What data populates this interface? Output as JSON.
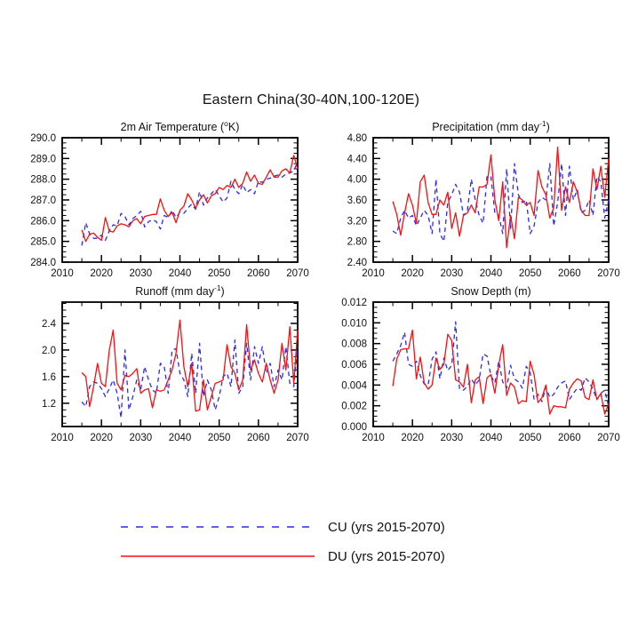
{
  "page_title": "Eastern China(30-40N,100-120E)",
  "colors": {
    "cu": "#2a2af0",
    "du": "#f80f0f",
    "axis": "#000000",
    "background": "#ffffff"
  },
  "legend": {
    "position": "bottom-center",
    "items": [
      {
        "name": "CU",
        "label": "CU (yrs 2015-2070)",
        "color": "#2a2af0",
        "style": "dashed"
      },
      {
        "name": "DU",
        "label": "DU (yrs 2015-2070)",
        "color": "#f80f0f",
        "style": "solid"
      }
    ]
  },
  "years": [
    2015,
    2016,
    2017,
    2018,
    2019,
    2020,
    2021,
    2022,
    2023,
    2024,
    2025,
    2026,
    2027,
    2028,
    2029,
    2030,
    2031,
    2032,
    2033,
    2034,
    2035,
    2036,
    2037,
    2038,
    2039,
    2040,
    2041,
    2042,
    2043,
    2044,
    2045,
    2046,
    2047,
    2048,
    2049,
    2050,
    2051,
    2052,
    2053,
    2054,
    2055,
    2056,
    2057,
    2058,
    2059,
    2060,
    2061,
    2062,
    2063,
    2064,
    2065,
    2066,
    2067,
    2068,
    2069,
    2070
  ],
  "chart_data": [
    {
      "type": "line",
      "title": "2m Air Temperature (°K)",
      "title_parts": {
        "pre": "2m Air Temperature (",
        "sup": "o",
        "post": "K)"
      },
      "xlabel": "",
      "ylabel": "",
      "xlim": [
        2010,
        2070
      ],
      "xticks": [
        2010,
        2020,
        2030,
        2040,
        2050,
        2060,
        2070
      ],
      "x_minor_step": 5,
      "ylim": [
        284.0,
        290.0
      ],
      "yticks": [
        284.0,
        285.0,
        286.0,
        287.0,
        288.0,
        289.0,
        290.0
      ],
      "ytick_labels": [
        "284.0",
        "285.0",
        "286.0",
        "287.0",
        "288.0",
        "289.0",
        "290.0"
      ],
      "y_minor_step": 0.25,
      "grid": false,
      "series": [
        {
          "name": "CU",
          "color": "#2a2af0",
          "dash": "5 4",
          "values": [
            284.8,
            285.9,
            285.35,
            285.15,
            285.15,
            285.3,
            285.05,
            285.5,
            285.8,
            285.75,
            286.35,
            286.2,
            285.8,
            286.1,
            286.25,
            286.45,
            285.7,
            285.95,
            286.05,
            285.95,
            285.6,
            286.25,
            286.15,
            286.5,
            286.15,
            286.4,
            286.35,
            286.6,
            286.8,
            286.55,
            287.4,
            286.75,
            287.1,
            287.3,
            287.5,
            287.2,
            286.9,
            287.1,
            287.9,
            287.5,
            287.3,
            287.75,
            287.35,
            287.5,
            287.3,
            287.9,
            287.85,
            288.0,
            288.05,
            288.15,
            288.2,
            288.1,
            288.25,
            288.3,
            288.4,
            288.85
          ]
        },
        {
          "name": "DU",
          "color": "#f80f0f",
          "dash": "",
          "values": [
            285.55,
            285.0,
            285.35,
            285.4,
            285.2,
            285.05,
            286.15,
            285.5,
            285.45,
            285.75,
            285.85,
            285.8,
            285.7,
            286.0,
            286.1,
            285.85,
            286.2,
            286.25,
            286.3,
            286.3,
            287.05,
            286.5,
            286.2,
            286.4,
            285.9,
            286.5,
            286.7,
            287.3,
            287.0,
            286.6,
            287.0,
            287.25,
            286.85,
            287.2,
            287.3,
            287.6,
            287.5,
            287.7,
            287.6,
            288.0,
            287.6,
            287.8,
            288.35,
            287.9,
            288.2,
            287.8,
            287.75,
            288.1,
            288.45,
            288.1,
            288.1,
            288.4,
            288.5,
            288.3,
            289.15,
            288.5
          ]
        }
      ]
    },
    {
      "type": "line",
      "title": "Precipitation (mm day-1)",
      "title_parts": {
        "pre": "Precipitation (mm day",
        "sup": "-1",
        "post": ")"
      },
      "xlabel": "",
      "ylabel": "",
      "xlim": [
        2010,
        2070
      ],
      "xticks": [
        2010,
        2020,
        2030,
        2040,
        2050,
        2060,
        2070
      ],
      "x_minor_step": 5,
      "ylim": [
        2.4,
        4.8
      ],
      "yticks": [
        2.4,
        2.8,
        3.2,
        3.6,
        4.0,
        4.4,
        4.8
      ],
      "ytick_labels": [
        "2.40",
        "2.80",
        "3.20",
        "3.60",
        "4.00",
        "4.40",
        "4.80"
      ],
      "y_minor_step": 0.1,
      "grid": false,
      "series": [
        {
          "name": "CU",
          "color": "#2a2af0",
          "dash": "5 4",
          "values": [
            3.0,
            2.95,
            3.25,
            3.4,
            3.25,
            3.3,
            3.1,
            3.25,
            3.4,
            3.3,
            2.95,
            4.0,
            2.95,
            2.8,
            3.55,
            3.7,
            3.9,
            3.75,
            3.3,
            3.4,
            4.0,
            3.6,
            3.3,
            3.15,
            4.05,
            4.05,
            3.35,
            3.3,
            2.95,
            4.2,
            3.05,
            4.3,
            3.7,
            3.55,
            3.6,
            2.95,
            3.1,
            3.55,
            3.65,
            3.6,
            4.3,
            3.1,
            3.55,
            4.3,
            3.3,
            4.25,
            3.6,
            3.8,
            3.35,
            3.4,
            3.6,
            3.3,
            4.05,
            3.95,
            3.25,
            3.6
          ]
        },
        {
          "name": "DU",
          "color": "#f80f0f",
          "dash": "",
          "values": [
            3.57,
            3.32,
            2.92,
            3.35,
            3.72,
            3.5,
            3.15,
            3.95,
            4.08,
            3.55,
            3.32,
            3.32,
            3.6,
            3.5,
            3.75,
            3.05,
            3.35,
            2.9,
            3.3,
            3.35,
            3.5,
            3.35,
            3.85,
            3.85,
            3.9,
            4.47,
            3.6,
            3.2,
            3.95,
            2.68,
            3.3,
            2.85,
            3.65,
            3.6,
            3.5,
            3.55,
            3.3,
            4.17,
            3.85,
            3.7,
            3.25,
            3.45,
            4.62,
            3.4,
            3.85,
            3.55,
            3.95,
            3.75,
            3.4,
            3.3,
            3.3,
            4.2,
            3.8,
            4.25,
            3.65,
            4.4
          ]
        }
      ]
    },
    {
      "type": "line",
      "title": "Runoff (mm day-1)",
      "title_parts": {
        "pre": "Runoff (mm day",
        "sup": "-1",
        "post": ")"
      },
      "xlabel": "",
      "ylabel": "",
      "xlim": [
        2010,
        2070
      ],
      "xticks": [
        2010,
        2020,
        2030,
        2040,
        2050,
        2060,
        2070
      ],
      "x_minor_step": 5,
      "ylim": [
        0.85,
        2.72
      ],
      "yticks": [
        1.2,
        1.6,
        2.0,
        2.4
      ],
      "ytick_labels": [
        "1.2",
        "1.6",
        "2.0",
        "2.4"
      ],
      "y_minor_step": 0.1,
      "grid": false,
      "series": [
        {
          "name": "CU",
          "color": "#2a2af0",
          "dash": "5 4",
          "values": [
            1.22,
            1.15,
            1.45,
            1.52,
            1.5,
            1.42,
            1.3,
            1.42,
            1.55,
            1.35,
            0.98,
            2.0,
            1.1,
            1.3,
            1.55,
            1.4,
            1.75,
            1.55,
            1.4,
            1.35,
            1.8,
            1.75,
            1.35,
            2.0,
            2.02,
            1.65,
            1.55,
            1.3,
            1.95,
            1.35,
            2.1,
            1.3,
            1.55,
            1.4,
            1.1,
            1.3,
            1.6,
            1.65,
            1.45,
            2.15,
            1.35,
            1.45,
            2.1,
            1.55,
            2.05,
            1.8,
            2.05,
            1.65,
            1.8,
            1.45,
            1.7,
            1.55,
            2.05,
            1.5,
            1.45,
            2.05
          ]
        },
        {
          "name": "DU",
          "color": "#f80f0f",
          "dash": "",
          "values": [
            1.66,
            1.6,
            1.15,
            1.45,
            1.8,
            1.5,
            1.45,
            2.0,
            2.3,
            1.5,
            1.4,
            1.62,
            1.6,
            1.65,
            1.72,
            1.35,
            1.4,
            1.42,
            1.13,
            1.4,
            1.38,
            1.4,
            1.55,
            1.7,
            1.95,
            2.45,
            1.75,
            1.45,
            1.8,
            1.08,
            1.1,
            1.55,
            1.1,
            1.3,
            1.5,
            1.52,
            1.55,
            2.08,
            1.75,
            1.65,
            1.4,
            1.55,
            2.38,
            1.7,
            1.85,
            1.65,
            1.52,
            1.8,
            1.55,
            1.35,
            1.55,
            2.1,
            1.7,
            2.35,
            1.5,
            2.3
          ]
        }
      ]
    },
    {
      "type": "line",
      "title": "Snow Depth (m)",
      "title_parts": {
        "pre": "Snow Depth (m)",
        "sup": "",
        "post": ""
      },
      "xlabel": "",
      "ylabel": "",
      "xlim": [
        2010,
        2070
      ],
      "xticks": [
        2010,
        2020,
        2030,
        2040,
        2050,
        2060,
        2070
      ],
      "x_minor_step": 5,
      "ylim": [
        0.0,
        0.012
      ],
      "yticks": [
        0.0,
        0.002,
        0.004,
        0.006,
        0.008,
        0.01,
        0.012
      ],
      "ytick_labels": [
        "0.000",
        "0.002",
        "0.004",
        "0.006",
        "0.008",
        "0.010",
        "0.012"
      ],
      "y_minor_step": 0.0005,
      "grid": false,
      "series": [
        {
          "name": "CU",
          "color": "#2a2af0",
          "dash": "5 4",
          "values": [
            0.0063,
            0.007,
            0.0078,
            0.0091,
            0.006,
            0.0058,
            0.0063,
            0.0049,
            0.0041,
            0.004,
            0.0065,
            0.0072,
            0.0046,
            0.0066,
            0.0054,
            0.0059,
            0.0101,
            0.0036,
            0.0035,
            0.0039,
            0.0046,
            0.004,
            0.0045,
            0.007,
            0.0068,
            0.0049,
            0.0042,
            0.0063,
            0.0043,
            0.0037,
            0.0059,
            0.0046,
            0.0043,
            0.0037,
            0.0058,
            0.0052,
            0.0026,
            0.0031,
            0.0024,
            0.0038,
            0.0028,
            0.0031,
            0.0038,
            0.0042,
            0.0044,
            0.0026,
            0.0032,
            0.0037,
            0.0035,
            0.0047,
            0.0043,
            0.0036,
            0.0026,
            0.0032,
            0.0035,
            0.0019
          ]
        },
        {
          "name": "DU",
          "color": "#f80f0f",
          "dash": "",
          "values": [
            0.0039,
            0.0065,
            0.0074,
            0.0075,
            0.0075,
            0.0093,
            0.0046,
            0.0067,
            0.0042,
            0.0036,
            0.004,
            0.0066,
            0.0055,
            0.006,
            0.0089,
            0.0083,
            0.0045,
            0.0043,
            0.0038,
            0.006,
            0.0023,
            0.0045,
            0.0048,
            0.0022,
            0.0047,
            0.005,
            0.0032,
            0.006,
            0.0079,
            0.003,
            0.0042,
            0.0038,
            0.0022,
            0.0025,
            0.0024,
            0.0063,
            0.005,
            0.0023,
            0.0028,
            0.004,
            0.0012,
            0.002,
            0.0019,
            0.0019,
            0.0018,
            0.0036,
            0.0042,
            0.0046,
            0.0044,
            0.0028,
            0.0026,
            0.0045,
            0.0026,
            0.0032,
            0.0012,
            0.0022
          ]
        }
      ]
    }
  ]
}
